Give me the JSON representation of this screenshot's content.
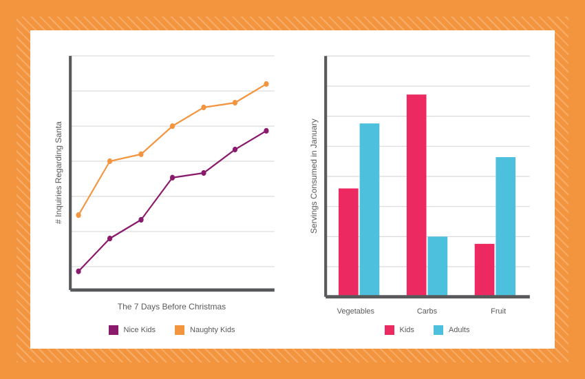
{
  "frame": {
    "outer_color": "#f3953f",
    "hatch_bg": "#f3953f",
    "hatch_line": "#f7ad6a",
    "inner_bg": "#ffffff"
  },
  "line_chart": {
    "type": "line",
    "y_label": "# Inquiries Regarding Santa",
    "x_label": "The 7 Days Before Christmas",
    "x_points": [
      0,
      1,
      2,
      3,
      4,
      5,
      6
    ],
    "ylim": [
      0,
      100
    ],
    "gridlines": [
      10,
      25,
      40,
      55,
      70,
      85,
      100
    ],
    "grid_color": "#d9dadb",
    "axis_color": "#58595b",
    "axis_width": 4,
    "line_width": 2,
    "marker_radius": 3.5,
    "series": [
      {
        "name": "Nice Kids",
        "color": "#8a1a6b",
        "values": [
          8,
          22,
          30,
          48,
          50,
          60,
          68
        ]
      },
      {
        "name": "Naughty Kids",
        "color": "#f3953f",
        "values": [
          32,
          55,
          58,
          70,
          78,
          80,
          88
        ]
      }
    ],
    "legend": [
      {
        "label": "Nice Kids",
        "color": "#8a1a6b"
      },
      {
        "label": "Naughty Kids",
        "color": "#f3953f"
      }
    ]
  },
  "bar_chart": {
    "type": "bar",
    "y_label": "Servings Consumed in January",
    "categories": [
      "Vegetables",
      "Carbs",
      "Fruit"
    ],
    "ylim": [
      0,
      100
    ],
    "gridlines": [
      12.5,
      25,
      37.5,
      50,
      62.5,
      75,
      87.5,
      100
    ],
    "grid_color": "#d9dadb",
    "axis_color": "#58595b",
    "axis_width": 4,
    "bar_group_width": 0.62,
    "bar_gap_inner": 0.02,
    "series": [
      {
        "name": "Kids",
        "color": "#ec2a61",
        "values": [
          45,
          84,
          22
        ]
      },
      {
        "name": "Adults",
        "color": "#4dc0de",
        "values": [
          72,
          25,
          58
        ]
      }
    ],
    "legend": [
      {
        "label": "Kids",
        "color": "#ec2a61"
      },
      {
        "label": "Adults",
        "color": "#4dc0de"
      }
    ]
  }
}
